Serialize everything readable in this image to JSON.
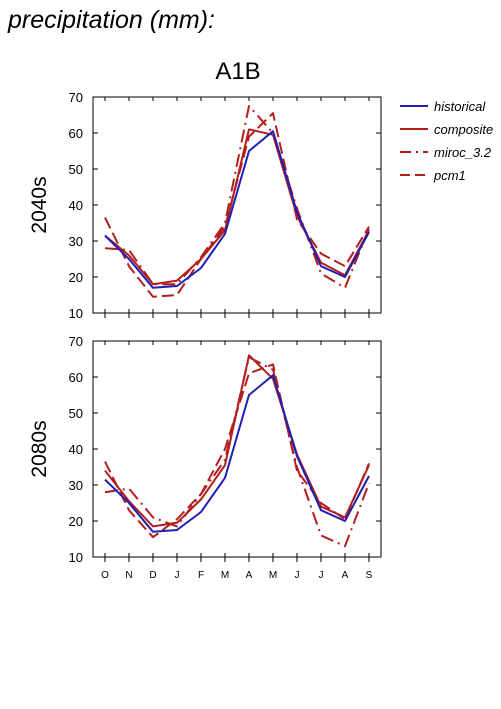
{
  "heading": "precipitation (mm):",
  "scenario": "A1B",
  "legend": [
    {
      "name": "historical",
      "color": "#1f1fb4",
      "dash": "solid"
    },
    {
      "name": "composite",
      "color": "#b21e1e",
      "dash": "solid"
    },
    {
      "name": "miroc_3.2",
      "color": "#b21e1e",
      "dash": "dashdot"
    },
    {
      "name": "pcm1",
      "color": "#b21e1e",
      "dash": "dashed"
    }
  ],
  "chart_data": [
    {
      "type": "line",
      "ylabel": "2040s",
      "categories": [
        "O",
        "N",
        "D",
        "J",
        "F",
        "M",
        "A",
        "M",
        "J",
        "J",
        "A",
        "S"
      ],
      "ylim": [
        10,
        70
      ],
      "yticks": [
        10,
        20,
        30,
        40,
        50,
        60,
        70
      ],
      "series": [
        {
          "name": "historical",
          "values": [
            31.5,
            25,
            17,
            17.5,
            22.5,
            32,
            55,
            60.5,
            38,
            23,
            20,
            32.5
          ]
        },
        {
          "name": "composite",
          "values": [
            31.5,
            26,
            18,
            19,
            25,
            33,
            61,
            59.5,
            37,
            24,
            20.5,
            33
          ]
        },
        {
          "name": "miroc_3.2",
          "values": [
            28,
            27.5,
            18,
            18,
            25.5,
            35,
            67.5,
            60,
            39,
            21,
            17,
            33.5
          ]
        },
        {
          "name": "pcm1",
          "values": [
            36.5,
            23,
            14.5,
            15,
            25,
            34,
            59,
            65.5,
            36,
            26.5,
            23,
            34
          ]
        }
      ]
    },
    {
      "type": "line",
      "ylabel": "2080s",
      "categories": [
        "O",
        "N",
        "D",
        "J",
        "F",
        "M",
        "A",
        "M",
        "J",
        "J",
        "A",
        "S"
      ],
      "ylim": [
        10,
        70
      ],
      "yticks": [
        10,
        20,
        30,
        40,
        50,
        60,
        70
      ],
      "series": [
        {
          "name": "historical",
          "values": [
            31.5,
            25,
            17,
            17.5,
            22.5,
            32,
            55,
            60.5,
            38,
            23,
            20,
            32.5
          ]
        },
        {
          "name": "composite",
          "values": [
            34,
            25.5,
            18.5,
            19.5,
            26,
            35.5,
            66,
            59.5,
            38.5,
            24,
            21,
            35.5
          ]
        },
        {
          "name": "miroc_3.2",
          "values": [
            28,
            29,
            21,
            18.5,
            27.5,
            37,
            65.5,
            62,
            35,
            16,
            13,
            30.5
          ]
        },
        {
          "name": "pcm1",
          "values": [
            36.5,
            23,
            15.5,
            20.5,
            27.5,
            40,
            61,
            63.5,
            34,
            25,
            20.5,
            36
          ]
        }
      ]
    }
  ]
}
